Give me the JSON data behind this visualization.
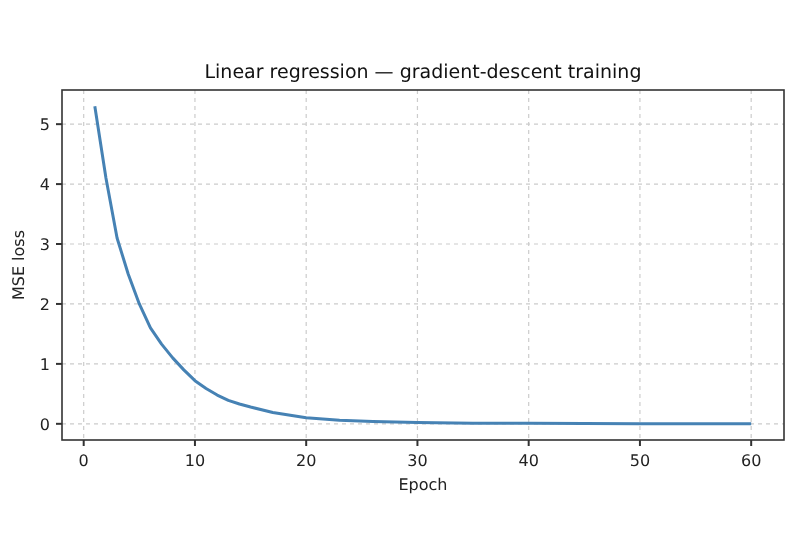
{
  "chart_data": {
    "type": "line",
    "title": "Linear regression — gradient-descent training",
    "xlabel": "Epoch",
    "ylabel": "MSE loss",
    "x": [
      1,
      2,
      3,
      4,
      5,
      6,
      7,
      8,
      9,
      10,
      11,
      12,
      13,
      14,
      15,
      17,
      20,
      23,
      26,
      30,
      35,
      40,
      50,
      60
    ],
    "series": [
      {
        "color": "#4682b4",
        "values": [
          5.3,
          4.1,
          3.1,
          2.5,
          2.0,
          1.6,
          1.33,
          1.1,
          0.9,
          0.72,
          0.59,
          0.48,
          0.39,
          0.33,
          0.28,
          0.19,
          0.1,
          0.06,
          0.04,
          0.02,
          0.01,
          0.01,
          0,
          0
        ]
      }
    ],
    "xlim": [
      -1.95,
      62.95
    ],
    "ylim": [
      -0.27,
      5.57
    ],
    "xticks": [
      0,
      10,
      20,
      30,
      40,
      50,
      60
    ],
    "yticks": [
      0,
      1,
      2,
      3,
      4,
      5
    ],
    "grid": true,
    "line_style": "solid",
    "marker": "none"
  }
}
